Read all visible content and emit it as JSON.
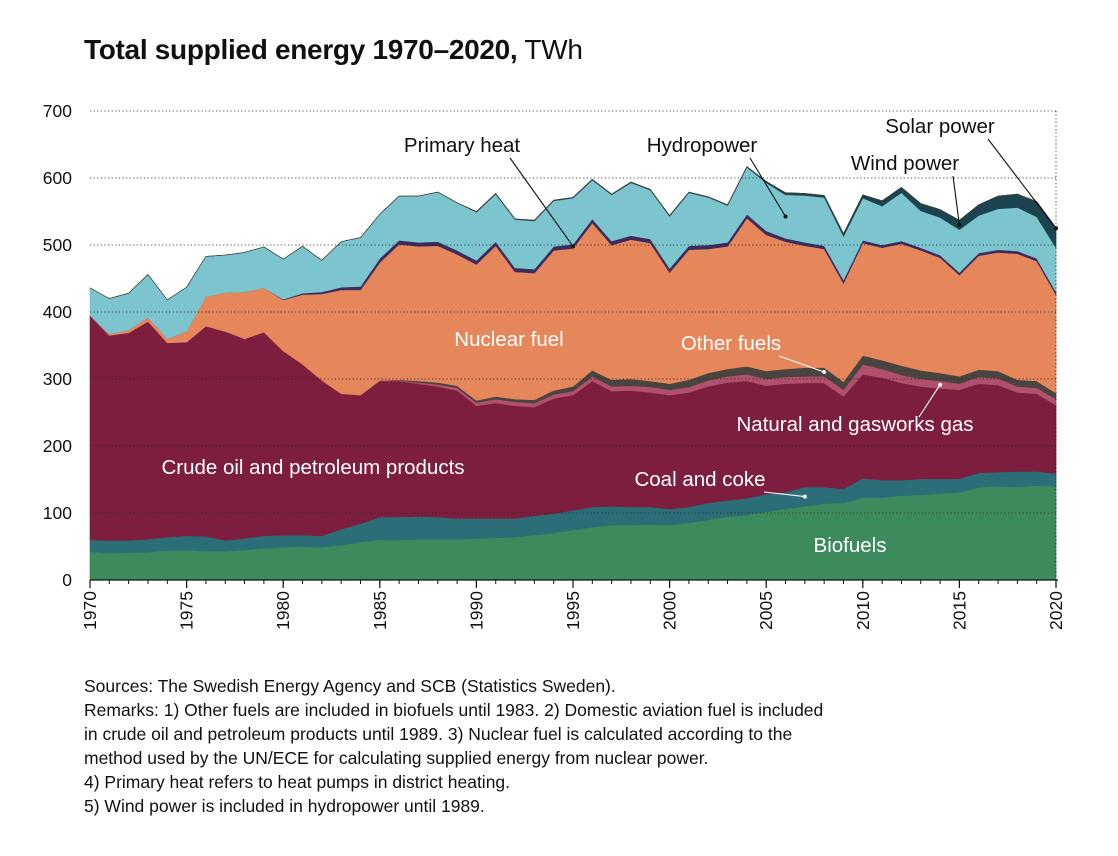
{
  "title": {
    "main": "Total supplied energy 1970–2020,",
    "unit": "TWh"
  },
  "notes": [
    "Sources: The Swedish Energy Agency and SCB (Statistics Sweden).",
    "Remarks: 1) Other fuels are included in biofuels until 1983. 2) Domestic aviation fuel is included",
    "in crude oil and petroleum products until 1989. 3) Nuclear fuel is calculated according to the",
    "method used by the UN/ECE for calculating supplied energy from nuclear power.",
    "4) Primary heat refers to heat pumps in district heating.",
    "5) Wind power is included in hydropower until 1989."
  ],
  "chart_data": {
    "type": "area",
    "stacked": true,
    "title": "Total supplied energy 1970–2020, TWh",
    "xlabel": "",
    "ylabel": "",
    "xlim": [
      1970,
      2020
    ],
    "ylim": [
      0,
      700
    ],
    "yticks": [
      0,
      100,
      200,
      300,
      400,
      500,
      600,
      700
    ],
    "xticks": [
      1970,
      1975,
      1980,
      1985,
      1990,
      1995,
      2000,
      2005,
      2010,
      2015,
      2020
    ],
    "grid": "horizontal dotted",
    "x": [
      1970,
      1971,
      1972,
      1973,
      1974,
      1975,
      1976,
      1977,
      1978,
      1979,
      1980,
      1981,
      1982,
      1983,
      1984,
      1985,
      1986,
      1987,
      1988,
      1989,
      1990,
      1991,
      1992,
      1993,
      1994,
      1995,
      1996,
      1997,
      1998,
      1999,
      2000,
      2001,
      2002,
      2003,
      2004,
      2005,
      2006,
      2007,
      2008,
      2009,
      2010,
      2011,
      2012,
      2013,
      2014,
      2015,
      2016,
      2017,
      2018,
      2019,
      2020
    ],
    "series": [
      {
        "name": "Biofuels",
        "color": "#3d8a5c",
        "values": [
          42,
          40,
          41,
          42,
          44,
          45,
          43,
          43,
          45,
          47,
          49,
          50,
          49,
          52,
          57,
          60,
          60,
          61,
          61,
          61,
          62,
          63,
          64,
          67,
          70,
          75,
          79,
          82,
          82,
          83,
          82,
          85,
          90,
          95,
          97,
          102,
          106,
          110,
          114,
          115,
          123,
          123,
          126,
          127,
          129,
          131,
          138,
          140,
          139,
          141,
          140
        ]
      },
      {
        "name": "Coal and coke",
        "color": "#2b6e78",
        "values": [
          18,
          19,
          18,
          19,
          20,
          21,
          22,
          16,
          17,
          19,
          18,
          17,
          17,
          24,
          27,
          34,
          34,
          34,
          33,
          31,
          30,
          29,
          28,
          29,
          29,
          29,
          30,
          28,
          27,
          26,
          24,
          24,
          25,
          24,
          25,
          26,
          25,
          29,
          25,
          21,
          29,
          26,
          23,
          24,
          22,
          20,
          22,
          21,
          23,
          21,
          19
        ]
      },
      {
        "name": "Crude oil and petroleum products",
        "color": "#7d1e3f",
        "values": [
          335,
          306,
          310,
          325,
          290,
          289,
          314,
          312,
          298,
          304,
          275,
          255,
          232,
          202,
          192,
          203,
          203,
          198,
          195,
          191,
          168,
          172,
          168,
          162,
          172,
          172,
          188,
          172,
          174,
          171,
          170,
          171,
          174,
          176,
          175,
          162,
          162,
          155,
          155,
          138,
          155,
          153,
          145,
          138,
          135,
          133,
          133,
          130,
          118,
          116,
          102
        ]
      },
      {
        "name": "Natural and gasworks gas",
        "color": "#b0506c",
        "values": [
          0,
          0,
          0,
          0,
          0,
          0,
          0,
          0,
          0,
          0,
          0,
          0,
          0,
          0,
          0,
          1,
          1,
          2,
          3,
          4,
          5,
          6,
          6,
          6,
          6,
          6,
          7,
          7,
          7,
          8,
          8,
          8,
          9,
          9,
          10,
          10,
          10,
          10,
          10,
          10,
          15,
          13,
          12,
          11,
          11,
          9,
          10,
          10,
          9,
          9,
          9
        ]
      },
      {
        "name": "Other fuels",
        "color": "#4a4440",
        "values": [
          0,
          0,
          0,
          0,
          0,
          0,
          0,
          0,
          0,
          0,
          0,
          0,
          0,
          0,
          0,
          0,
          1,
          2,
          3,
          3,
          3,
          4,
          4,
          5,
          6,
          7,
          9,
          10,
          10,
          9,
          9,
          11,
          11,
          11,
          12,
          12,
          12,
          13,
          13,
          12,
          13,
          13,
          14,
          13,
          12,
          11,
          11,
          11,
          10,
          10,
          9
        ]
      },
      {
        "name": "Nuclear fuel",
        "color": "#e5865b",
        "values": [
          0,
          2,
          4,
          6,
          6,
          16,
          44,
          58,
          70,
          66,
          76,
          104,
          129,
          155,
          157,
          176,
          202,
          201,
          204,
          196,
          203,
          225,
          190,
          189,
          209,
          206,
          220,
          201,
          208,
          206,
          166,
          194,
          185,
          183,
          221,
          203,
          190,
          182,
          177,
          147,
          168,
          168,
          182,
          179,
          172,
          151,
          170,
          177,
          188,
          179,
          147
        ]
      },
      {
        "name": "Primary heat",
        "color": "#3c2b5f",
        "values": [
          0,
          0,
          0,
          0,
          0,
          0,
          0,
          0,
          0,
          0,
          1,
          2,
          3,
          4,
          5,
          6,
          6,
          6,
          6,
          6,
          6,
          6,
          6,
          6,
          6,
          6,
          6,
          6,
          6,
          6,
          6,
          6,
          6,
          6,
          6,
          6,
          5,
          5,
          5,
          5,
          4,
          4,
          4,
          4,
          4,
          4,
          4,
          4,
          4,
          4,
          4
        ]
      },
      {
        "name": "Hydropower",
        "color": "#7cc5cf",
        "values": [
          41,
          53,
          55,
          64,
          58,
          66,
          60,
          56,
          59,
          61,
          60,
          70,
          47,
          68,
          73,
          66,
          66,
          69,
          74,
          71,
          72,
          71,
          72,
          72,
          68,
          69,
          58,
          69,
          79,
          73,
          78,
          79,
          71,
          55,
          70,
          72,
          65,
          70,
          72,
          65,
          63,
          58,
          72,
          55,
          56,
          64,
          56,
          61,
          65,
          62,
          66
        ]
      },
      {
        "name": "Wind power",
        "color": "#1c4350",
        "values": [
          0,
          0,
          0,
          0,
          0,
          0,
          0,
          0,
          0,
          0,
          0,
          0,
          0,
          0,
          0,
          0,
          0,
          0,
          0,
          0,
          1,
          1,
          1,
          1,
          1,
          1,
          1,
          1,
          1,
          1,
          1,
          1,
          1,
          1,
          1,
          2,
          3,
          3,
          3,
          4,
          5,
          8,
          8,
          11,
          12,
          14,
          16,
          19,
          20,
          22,
          28
        ]
      },
      {
        "name": "Solar power",
        "color": "#4b3b2a",
        "values": [
          0,
          0,
          0,
          0,
          0,
          0,
          0,
          0,
          0,
          0,
          0,
          0,
          0,
          0,
          0,
          0,
          0,
          0,
          0,
          0,
          0,
          0,
          0,
          0,
          0,
          0,
          0,
          0,
          0,
          0,
          0,
          0,
          0,
          0,
          0,
          0,
          0,
          0,
          0,
          0,
          0,
          0,
          0,
          0,
          0,
          0,
          0,
          0,
          0,
          1,
          2
        ]
      }
    ],
    "labels": [
      {
        "text": "Primary heat",
        "series": "Primary heat",
        "x": 1995,
        "color": "#111111",
        "leader": true
      },
      {
        "text": "Hydropower",
        "series": "Hydropower",
        "x": 2006,
        "color": "#111111",
        "leader": true
      },
      {
        "text": "Solar power",
        "series": "Solar power",
        "x": 2020,
        "color": "#111111",
        "leader": true
      },
      {
        "text": "Wind power",
        "series": "Wind power",
        "x": 2015,
        "color": "#111111",
        "leader": true
      },
      {
        "text": "Nuclear fuel",
        "series": "Nuclear fuel",
        "color": "#ffffff",
        "leader": false
      },
      {
        "text": "Other fuels",
        "series": "Other fuels",
        "x": 2008,
        "color": "#ffffff",
        "leader": true
      },
      {
        "text": "Natural and gasworks gas",
        "series": "Natural and gasworks gas",
        "x": 2014,
        "color": "#ffffff",
        "leader": true
      },
      {
        "text": "Crude oil and petroleum products",
        "series": "Crude oil and petroleum products",
        "color": "#ffffff",
        "leader": false
      },
      {
        "text": "Coal and coke",
        "series": "Coal and coke",
        "x": 2007,
        "color": "#ffffff",
        "leader": true
      },
      {
        "text": "Biofuels",
        "series": "Biofuels",
        "color": "#ffffff",
        "leader": false
      }
    ]
  }
}
